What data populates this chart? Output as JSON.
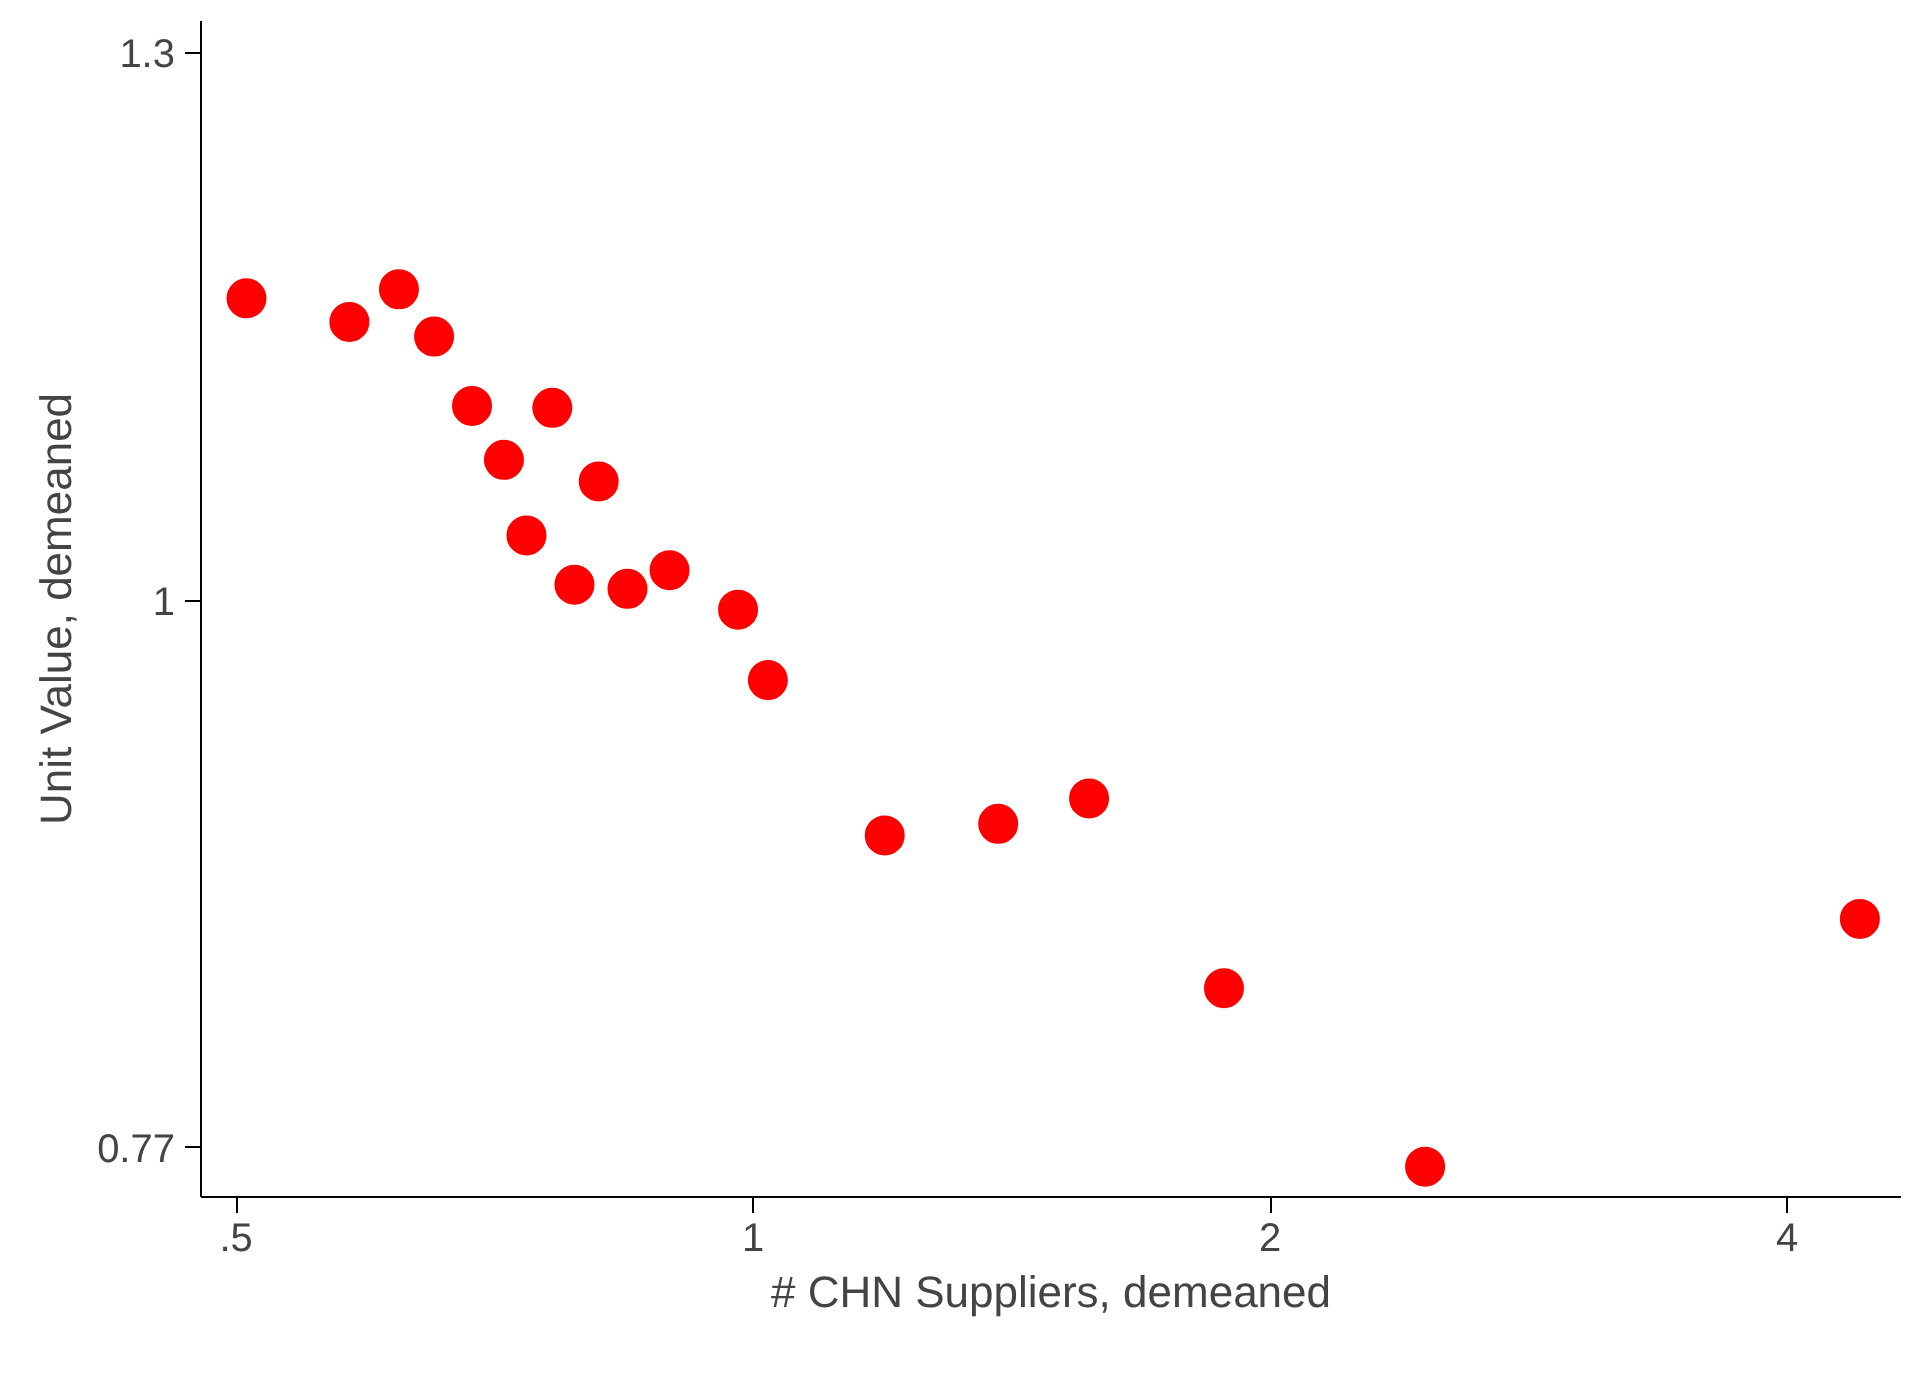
{
  "chart_data": {
    "type": "scatter",
    "xlabel": "# CHN Suppliers, demeaned",
    "ylabel": "Unit Value, demeaned",
    "log": "xy",
    "grid": false,
    "marker": "circle",
    "x": [
      0.507,
      0.582,
      0.622,
      0.652,
      0.686,
      0.716,
      0.764,
      0.738,
      0.813,
      0.787,
      0.845,
      0.894,
      0.98,
      1.02,
      1.193,
      1.389,
      1.569,
      1.88,
      2.462,
      4.41
    ],
    "series": [
      {
        "color": "#ff0000",
        "values": [
          1.156,
          1.143,
          1.161,
          1.135,
          1.098,
          1.07,
          1.097,
          1.032,
          1.059,
          1.008,
          1.006,
          1.015,
          0.996,
          0.963,
          0.894,
          0.899,
          0.91,
          0.831,
          0.763,
          0.859
        ]
      }
    ],
    "xlim": [
      0.477,
      4.66
    ],
    "ylim": [
      0.752,
      1.32
    ],
    "xticks": [
      {
        "value": 0.5,
        "label": ".5"
      },
      1,
      2,
      4
    ],
    "yticks": [
      0.77,
      1,
      1.3
    ]
  }
}
